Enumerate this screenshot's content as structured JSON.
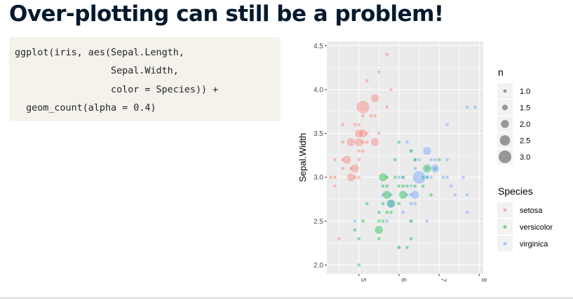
{
  "slide": {
    "title": "Over-plotting can still be a problem!"
  },
  "code": {
    "text": "ggplot(iris, aes(Sepal.Length,\n                 Sepal.Width,\n                 color = Species)) +\n  geom_count(alpha = 0.4)"
  },
  "chart_data": {
    "type": "scatter",
    "ylabel": "Sepal.Width",
    "xlabel": "",
    "x_range": [
      4.2,
      8.1
    ],
    "y_range": [
      1.9,
      4.55
    ],
    "x_ticks": [
      5,
      6,
      7,
      8
    ],
    "x_tick_labels": [
      "5",
      "6",
      "7",
      "8"
    ],
    "y_ticks": [
      2.0,
      2.5,
      3.0,
      3.5,
      4.0,
      4.5
    ],
    "y_tick_labels": [
      "2.0",
      "2.5",
      "3.0",
      "3.5",
      "4.0",
      "4.5"
    ],
    "grid": true,
    "alpha": 0.4,
    "legend_position": "right",
    "size_legend": {
      "title": "n",
      "labels": [
        "1.0",
        "1.5",
        "2.0",
        "2.5",
        "3.0"
      ],
      "values": [
        1.0,
        1.5,
        2.0,
        2.5,
        3.0
      ],
      "color": "#4d4d4d"
    },
    "color_legend": {
      "title": "Species",
      "labels": [
        "setosa",
        "versicolor",
        "virginica"
      ]
    },
    "series": [
      {
        "name": "setosa",
        "color": "#F8766D",
        "points": [
          [
            4.3,
            3.0,
            1
          ],
          [
            4.4,
            2.9,
            1
          ],
          [
            4.4,
            3.0,
            1
          ],
          [
            4.4,
            3.2,
            1
          ],
          [
            4.5,
            2.3,
            1
          ],
          [
            4.6,
            3.1,
            1
          ],
          [
            4.6,
            3.2,
            1
          ],
          [
            4.6,
            3.4,
            1
          ],
          [
            4.6,
            3.6,
            1
          ],
          [
            4.7,
            3.2,
            2
          ],
          [
            4.8,
            3.0,
            2
          ],
          [
            4.8,
            3.1,
            1
          ],
          [
            4.8,
            3.4,
            2
          ],
          [
            4.9,
            3.0,
            1
          ],
          [
            4.9,
            3.1,
            2
          ],
          [
            4.9,
            3.6,
            1
          ],
          [
            5.0,
            3.0,
            1
          ],
          [
            5.0,
            3.2,
            1
          ],
          [
            5.0,
            3.3,
            1
          ],
          [
            5.0,
            3.4,
            2
          ],
          [
            5.0,
            3.5,
            2
          ],
          [
            5.0,
            3.6,
            1
          ],
          [
            5.1,
            3.3,
            1
          ],
          [
            5.1,
            3.4,
            1
          ],
          [
            5.1,
            3.5,
            2
          ],
          [
            5.1,
            3.7,
            1
          ],
          [
            5.1,
            3.8,
            3
          ],
          [
            5.2,
            3.4,
            1
          ],
          [
            5.2,
            3.5,
            1
          ],
          [
            5.2,
            4.1,
            1
          ],
          [
            5.3,
            3.7,
            1
          ],
          [
            5.4,
            3.4,
            2
          ],
          [
            5.4,
            3.7,
            1
          ],
          [
            5.4,
            3.9,
            2
          ],
          [
            5.5,
            3.5,
            1
          ],
          [
            5.5,
            4.2,
            1
          ],
          [
            5.7,
            3.8,
            1
          ],
          [
            5.7,
            4.4,
            1
          ],
          [
            5.8,
            4.0,
            1
          ]
        ]
      },
      {
        "name": "versicolor",
        "color": "#00BA38",
        "points": [
          [
            4.9,
            2.4,
            1
          ],
          [
            5.0,
            2.0,
            1
          ],
          [
            5.0,
            2.3,
            1
          ],
          [
            5.1,
            2.5,
            1
          ],
          [
            5.2,
            2.7,
            1
          ],
          [
            5.5,
            2.3,
            1
          ],
          [
            5.5,
            2.4,
            2
          ],
          [
            5.5,
            2.5,
            1
          ],
          [
            5.5,
            2.6,
            1
          ],
          [
            5.6,
            2.5,
            1
          ],
          [
            5.6,
            2.7,
            1
          ],
          [
            5.6,
            2.9,
            1
          ],
          [
            5.6,
            3.0,
            2
          ],
          [
            5.7,
            2.6,
            1
          ],
          [
            5.7,
            2.8,
            2
          ],
          [
            5.7,
            2.9,
            1
          ],
          [
            5.7,
            3.0,
            1
          ],
          [
            5.8,
            2.6,
            1
          ],
          [
            5.8,
            2.7,
            2
          ],
          [
            5.9,
            3.0,
            1
          ],
          [
            5.9,
            3.2,
            1
          ],
          [
            6.0,
            2.2,
            1
          ],
          [
            6.0,
            2.7,
            1
          ],
          [
            6.0,
            2.9,
            1
          ],
          [
            6.0,
            3.4,
            1
          ],
          [
            6.1,
            2.8,
            2
          ],
          [
            6.1,
            2.9,
            1
          ],
          [
            6.1,
            3.0,
            1
          ],
          [
            6.2,
            2.2,
            1
          ],
          [
            6.2,
            2.9,
            1
          ],
          [
            6.3,
            2.3,
            1
          ],
          [
            6.3,
            2.5,
            1
          ],
          [
            6.3,
            3.3,
            1
          ],
          [
            6.4,
            2.9,
            1
          ],
          [
            6.4,
            3.2,
            1
          ],
          [
            6.6,
            2.9,
            1
          ],
          [
            6.6,
            3.0,
            1
          ],
          [
            6.7,
            3.0,
            1
          ],
          [
            6.7,
            3.1,
            2
          ],
          [
            6.8,
            2.8,
            1
          ],
          [
            6.9,
            3.1,
            1
          ],
          [
            7.0,
            3.2,
            1
          ]
        ]
      },
      {
        "name": "virginica",
        "color": "#619CFF",
        "points": [
          [
            4.9,
            2.5,
            1
          ],
          [
            5.6,
            2.8,
            1
          ],
          [
            5.7,
            2.5,
            1
          ],
          [
            5.8,
            2.7,
            2
          ],
          [
            5.8,
            2.8,
            1
          ],
          [
            6.0,
            2.2,
            1
          ],
          [
            6.0,
            3.0,
            1
          ],
          [
            6.1,
            2.6,
            1
          ],
          [
            6.1,
            3.0,
            1
          ],
          [
            6.2,
            2.8,
            1
          ],
          [
            6.2,
            3.4,
            1
          ],
          [
            6.3,
            2.5,
            1
          ],
          [
            6.3,
            2.7,
            1
          ],
          [
            6.3,
            2.8,
            1
          ],
          [
            6.3,
            2.9,
            1
          ],
          [
            6.3,
            3.3,
            1
          ],
          [
            6.4,
            2.7,
            1
          ],
          [
            6.4,
            2.8,
            2
          ],
          [
            6.4,
            3.1,
            1
          ],
          [
            6.4,
            3.2,
            1
          ],
          [
            6.5,
            3.0,
            3
          ],
          [
            6.5,
            3.2,
            1
          ],
          [
            6.7,
            2.5,
            1
          ],
          [
            6.7,
            3.0,
            1
          ],
          [
            6.7,
            3.1,
            1
          ],
          [
            6.7,
            3.3,
            2
          ],
          [
            6.8,
            3.0,
            1
          ],
          [
            6.8,
            3.2,
            1
          ],
          [
            6.9,
            3.1,
            2
          ],
          [
            6.9,
            3.2,
            1
          ],
          [
            7.1,
            3.0,
            1
          ],
          [
            7.2,
            3.0,
            1
          ],
          [
            7.2,
            3.2,
            1
          ],
          [
            7.2,
            3.6,
            1
          ],
          [
            7.3,
            2.9,
            1
          ],
          [
            7.4,
            2.8,
            1
          ],
          [
            7.6,
            3.0,
            1
          ],
          [
            7.7,
            2.6,
            1
          ],
          [
            7.7,
            2.8,
            1
          ],
          [
            7.7,
            3.8,
            1
          ],
          [
            7.9,
            3.8,
            1
          ]
        ]
      }
    ]
  }
}
